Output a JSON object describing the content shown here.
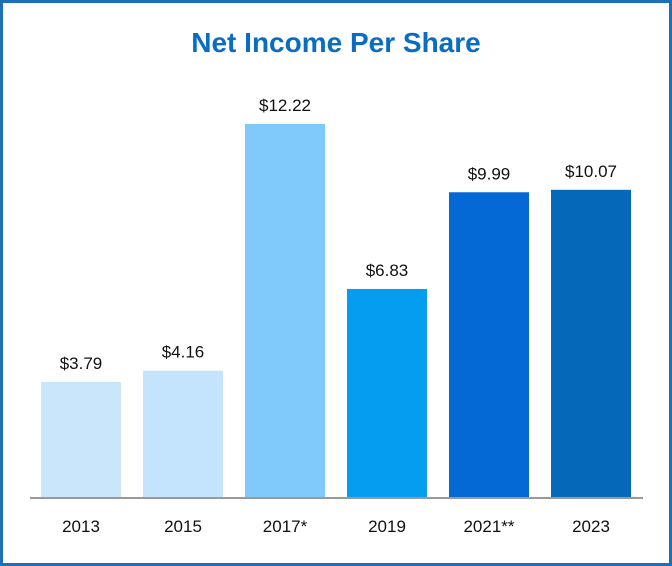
{
  "chart_data": {
    "type": "bar",
    "title": "Net Income Per Share",
    "categories": [
      "2013",
      "2015",
      "2017*",
      "2019",
      "2021**",
      "2023"
    ],
    "values": [
      3.79,
      4.16,
      12.22,
      6.83,
      9.99,
      10.07
    ],
    "value_labels": [
      "$3.79",
      "$4.16",
      "$12.22",
      "$6.83",
      "$9.99",
      "$10.07"
    ],
    "colors": [
      "#c9e6fb",
      "#c4e3fc",
      "#80c9fb",
      "#049df0",
      "#0468d5",
      "#0568b9"
    ],
    "xlabel": "",
    "ylabel": "",
    "ylim": [
      0,
      12.22
    ],
    "grid": false,
    "legend": "none"
  }
}
